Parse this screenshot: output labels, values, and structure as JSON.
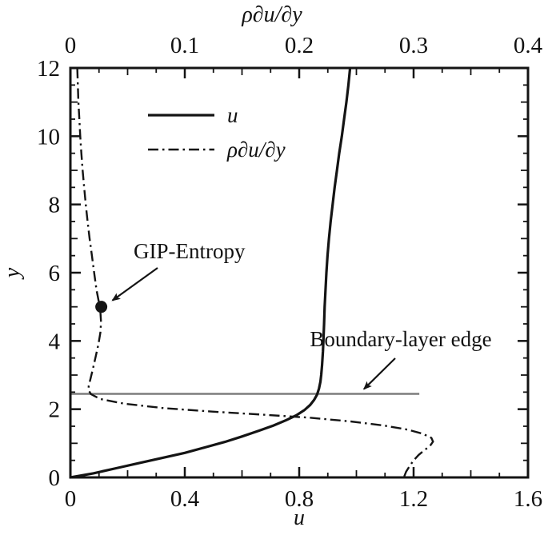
{
  "chart_data": {
    "type": "line",
    "title": "",
    "axes": {
      "bottom": {
        "label": "u",
        "min": 0,
        "max": 1.6,
        "tick_values": [
          0,
          0.4,
          0.8,
          1.2,
          1.6
        ],
        "tick_labels": [
          "0",
          "0.4",
          "0.8",
          "1.2",
          "1.6"
        ],
        "minor_step": 0.1
      },
      "top": {
        "label": "ρ∂u/∂y",
        "min": 0,
        "max": 0.4,
        "tick_values": [
          0,
          0.1,
          0.2,
          0.3,
          0.4
        ],
        "tick_labels": [
          "0",
          "0.1",
          "0.2",
          "0.3",
          "0.4"
        ],
        "minor_step": 0.025
      },
      "left": {
        "label": "y",
        "min": 0,
        "max": 12,
        "tick_values": [
          0,
          2,
          4,
          6,
          8,
          10,
          12
        ],
        "tick_labels": [
          "0",
          "2",
          "4",
          "6",
          "8",
          "10",
          "12"
        ],
        "minor_step": 0.5
      }
    },
    "legend": {
      "items": [
        {
          "label": "u",
          "style": "solid"
        },
        {
          "label": "ρ∂u/∂y",
          "style": "dashdot"
        }
      ]
    },
    "series": [
      {
        "name": "u",
        "axis": "bottom",
        "style": "solid",
        "points": [
          [
            0,
            0
          ],
          [
            0.08,
            0.12
          ],
          [
            0.16,
            0.27
          ],
          [
            0.24,
            0.42
          ],
          [
            0.32,
            0.57
          ],
          [
            0.4,
            0.72
          ],
          [
            0.47,
            0.88
          ],
          [
            0.54,
            1.04
          ],
          [
            0.6,
            1.2
          ],
          [
            0.66,
            1.37
          ],
          [
            0.71,
            1.52
          ],
          [
            0.755,
            1.68
          ],
          [
            0.79,
            1.82
          ],
          [
            0.818,
            1.97
          ],
          [
            0.838,
            2.12
          ],
          [
            0.852,
            2.27
          ],
          [
            0.862,
            2.42
          ],
          [
            0.869,
            2.6
          ],
          [
            0.874,
            2.8
          ],
          [
            0.877,
            3.0
          ],
          [
            0.88,
            3.3
          ],
          [
            0.883,
            3.7
          ],
          [
            0.885,
            4.1
          ],
          [
            0.887,
            4.5
          ],
          [
            0.889,
            5.0
          ],
          [
            0.892,
            5.5
          ],
          [
            0.895,
            6.0
          ],
          [
            0.899,
            6.5
          ],
          [
            0.904,
            7.0
          ],
          [
            0.91,
            7.5
          ],
          [
            0.917,
            8.0
          ],
          [
            0.924,
            8.5
          ],
          [
            0.932,
            9.0
          ],
          [
            0.94,
            9.5
          ],
          [
            0.949,
            10.0
          ],
          [
            0.957,
            10.5
          ],
          [
            0.965,
            11.0
          ],
          [
            0.972,
            11.5
          ],
          [
            0.978,
            12.0
          ]
        ]
      },
      {
        "name": "ρ∂u/∂y",
        "axis": "top",
        "style": "dashdot",
        "points": [
          [
            0.006,
            12
          ],
          [
            0.0065,
            11.5
          ],
          [
            0.007,
            11
          ],
          [
            0.0078,
            10.5
          ],
          [
            0.0086,
            10
          ],
          [
            0.0096,
            9.5
          ],
          [
            0.0107,
            9
          ],
          [
            0.012,
            8.5
          ],
          [
            0.0134,
            8
          ],
          [
            0.015,
            7.5
          ],
          [
            0.0168,
            7
          ],
          [
            0.0188,
            6.5
          ],
          [
            0.0208,
            6
          ],
          [
            0.0228,
            5.5
          ],
          [
            0.0248,
            5.15
          ],
          [
            0.0262,
            4.85
          ],
          [
            0.0268,
            4.55
          ],
          [
            0.0262,
            4.25
          ],
          [
            0.0245,
            3.9
          ],
          [
            0.0222,
            3.55
          ],
          [
            0.0198,
            3.2
          ],
          [
            0.0176,
            2.9
          ],
          [
            0.016,
            2.68
          ],
          [
            0.0158,
            2.56
          ],
          [
            0.018,
            2.44
          ],
          [
            0.026,
            2.3
          ],
          [
            0.047,
            2.16
          ],
          [
            0.082,
            2.03
          ],
          [
            0.124,
            1.93
          ],
          [
            0.168,
            1.84
          ],
          [
            0.209,
            1.75
          ],
          [
            0.245,
            1.64
          ],
          [
            0.274,
            1.52
          ],
          [
            0.295,
            1.4
          ],
          [
            0.308,
            1.28
          ],
          [
            0.3155,
            1.16
          ],
          [
            0.317,
            1.05
          ],
          [
            0.3145,
            0.93
          ],
          [
            0.3095,
            0.8
          ],
          [
            0.3045,
            0.66
          ],
          [
            0.3,
            0.5
          ],
          [
            0.2965,
            0.33
          ],
          [
            0.2935,
            0.17
          ],
          [
            0.2915,
            0.0
          ]
        ]
      }
    ],
    "annotations": {
      "gip_entropy": {
        "label": "GIP-Entropy",
        "marker_x": 0.027,
        "marker_y": 5.0,
        "marker_axis": "top"
      },
      "boundary_layer": {
        "label": "Boundary-layer edge",
        "y": 2.45,
        "x_extent": 1.22,
        "color": "#7d7d7d"
      }
    },
    "colors": {
      "line": "#141414",
      "boundary": "#7d7d7d",
      "background": "#ffffff"
    }
  }
}
